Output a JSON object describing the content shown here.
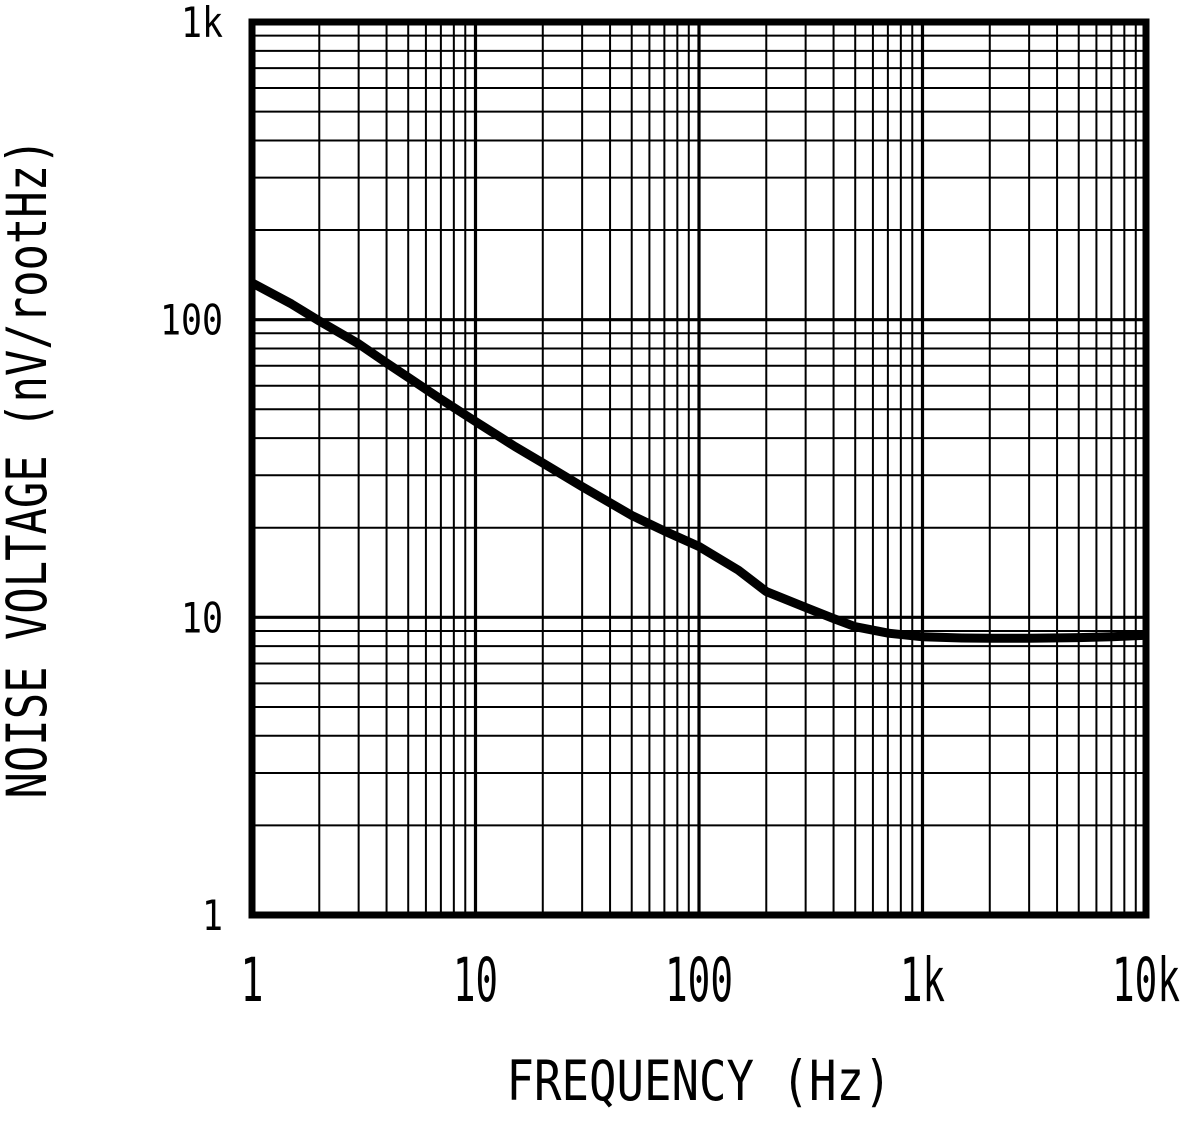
{
  "chart_data": {
    "type": "line",
    "title": "",
    "xlabel": "FREQUENCY (Hz)",
    "ylabel": "NOISE VOLTAGE (nV/rootHz)",
    "x_scale": "log",
    "y_scale": "log",
    "xlim": [
      1,
      10000
    ],
    "ylim": [
      1,
      1000
    ],
    "grid": "log major and minor gridlines on both axes",
    "legend": "none",
    "x_ticks": [
      {
        "value": 1,
        "label": "1"
      },
      {
        "value": 10,
        "label": "10"
      },
      {
        "value": 100,
        "label": "100"
      },
      {
        "value": 1000,
        "label": "1k"
      },
      {
        "value": 10000,
        "label": "10k"
      }
    ],
    "y_ticks": [
      {
        "value": 1,
        "label": "1"
      },
      {
        "value": 10,
        "label": "10"
      },
      {
        "value": 100,
        "label": "100"
      },
      {
        "value": 1000,
        "label": "1k"
      }
    ],
    "series": [
      {
        "name": "noise voltage",
        "x": [
          1,
          1.5,
          2,
          3,
          4,
          5,
          7,
          10,
          15,
          20,
          30,
          50,
          70,
          100,
          150,
          200,
          300,
          400,
          500,
          700,
          1000,
          1500,
          2000,
          3000,
          5000,
          7000,
          10000
        ],
        "y": [
          133,
          113,
          99,
          83,
          71.5,
          64,
          54,
          45.5,
          37.5,
          33,
          27.5,
          22,
          19.5,
          17.3,
          14.4,
          12.2,
          10.8,
          9.9,
          9.3,
          8.85,
          8.6,
          8.52,
          8.5,
          8.5,
          8.55,
          8.6,
          8.7
        ]
      }
    ],
    "colors": {
      "line": "#000000",
      "grid": "#000000",
      "text": "#000000",
      "background": "#ffffff"
    }
  }
}
